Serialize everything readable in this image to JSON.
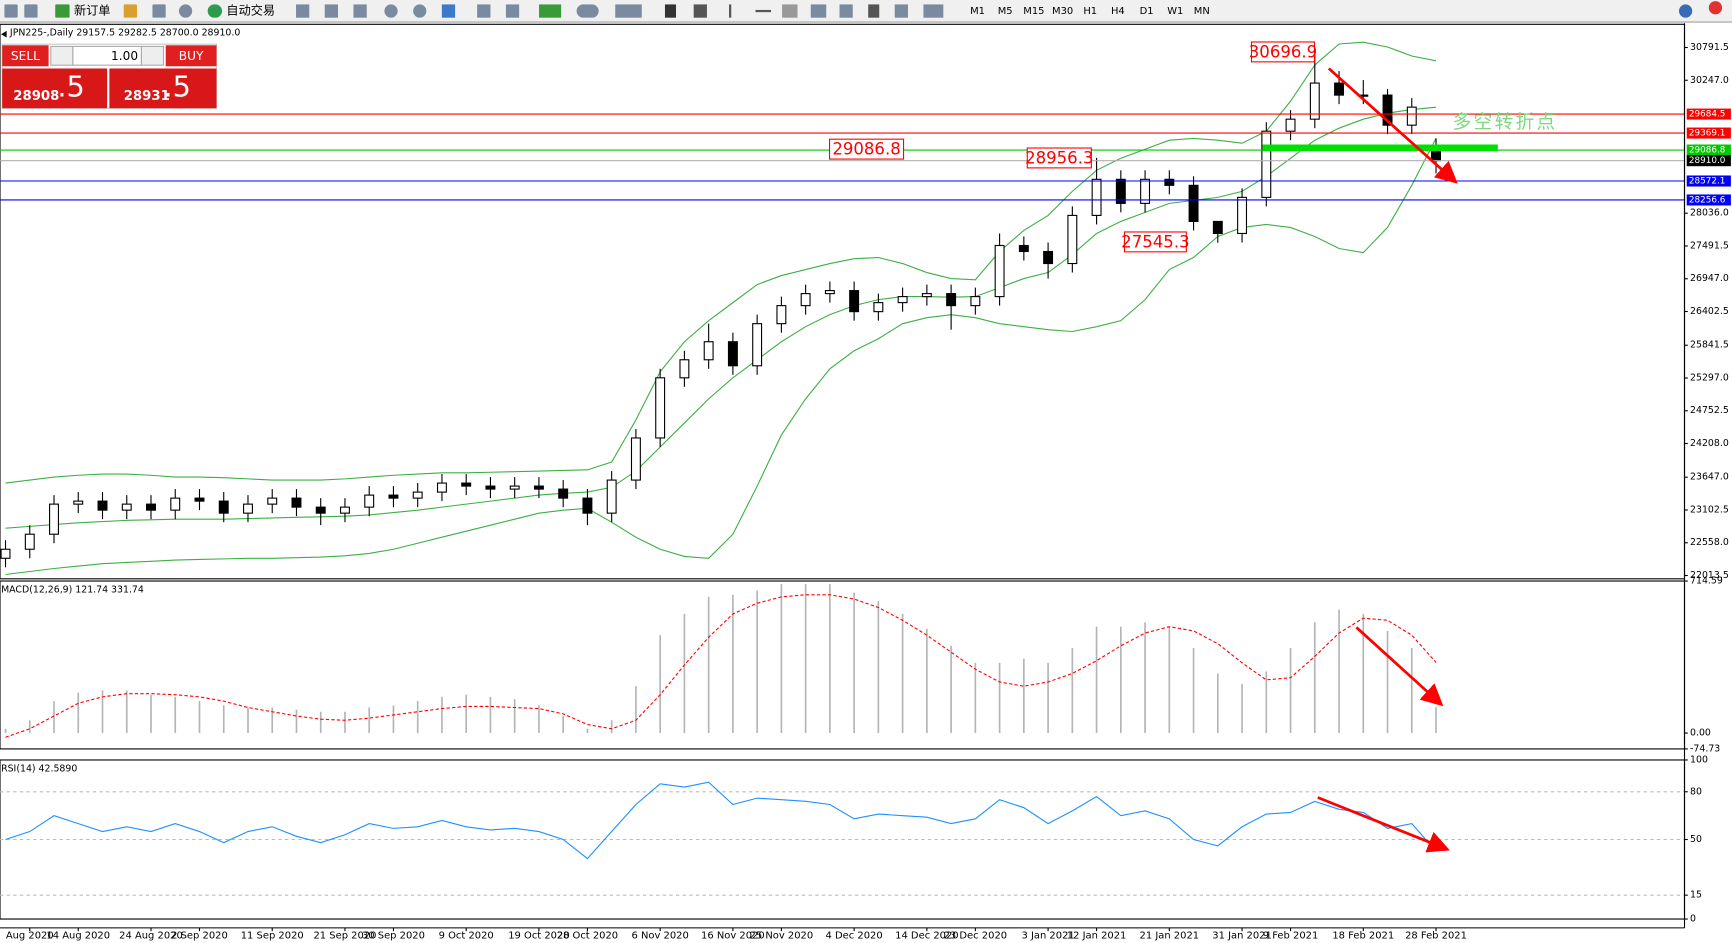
{
  "toolbar": {
    "labels": [
      "新订单",
      "自动交易"
    ],
    "timeframes": [
      "M1",
      "M5",
      "M15",
      "M30",
      "H1",
      "H4",
      "D1",
      "W1",
      "MN"
    ]
  },
  "trade_panel": {
    "sell": "SELL",
    "buy": "BUY",
    "volume": "1.00",
    "sell_price": "28908",
    "sell_pips": ".5",
    "buy_price": "28931",
    "buy_pips": ".5"
  },
  "chart_data": [
    {
      "type": "candlestick",
      "title": "JPN225-,Daily  29157.5 29282.5 28700.0 28910.0",
      "categories": [
        null,
        "Aug 2020",
        null,
        "14 Aug 2020",
        null,
        null,
        "24 Aug 2020",
        null,
        "2 Sep 2020",
        null,
        null,
        "11 Sep 2020",
        null,
        null,
        "21 Sep 2020",
        null,
        "30 Sep 2020",
        null,
        null,
        "9 Oct 2020",
        null,
        null,
        "19 Oct 2020",
        null,
        "28 Oct 2020",
        null,
        null,
        "6 Nov 2020",
        null,
        null,
        "16 Nov 2020",
        null,
        "25 Nov 2020",
        null,
        null,
        "4 Dec 2020",
        null,
        null,
        "14 Dec 2020",
        null,
        "23 Dec 2020",
        null,
        null,
        "3 Jan 2021",
        null,
        "12 Jan 2021",
        null,
        null,
        "21 Jan 2021",
        null,
        null,
        "31 Jan 2021",
        null,
        "9 Feb 2021",
        null,
        null,
        "18 Feb 2021",
        null,
        null,
        "28 Feb 2021"
      ],
      "open": [
        22300,
        22450,
        22700,
        23200,
        23250,
        23100,
        23200,
        23100,
        23300,
        23250,
        23050,
        23200,
        23300,
        23150,
        23050,
        23150,
        23350,
        23300,
        23400,
        23550,
        23500,
        23450,
        23500,
        23450,
        23300,
        23050,
        23600,
        24300,
        25300,
        25600,
        25900,
        25500,
        26200,
        26500,
        26700,
        26750,
        26400,
        26550,
        26650,
        26700,
        26500,
        26650,
        27500,
        27400,
        27200,
        28000,
        28600,
        28200,
        28600,
        28500,
        27900,
        27700,
        28300,
        29400,
        29600,
        30200,
        30000,
        30000,
        29500,
        29157.5
      ],
      "high": [
        22600,
        22850,
        23350,
        23400,
        23400,
        23350,
        23350,
        23450,
        23450,
        23400,
        23350,
        23450,
        23450,
        23300,
        23300,
        23500,
        23500,
        23550,
        23700,
        23700,
        23650,
        23650,
        23650,
        23600,
        23450,
        23750,
        24450,
        25450,
        25750,
        26200,
        26050,
        26350,
        26650,
        26850,
        26900,
        26900,
        26700,
        26800,
        26850,
        26850,
        26800,
        27700,
        27650,
        27550,
        28150,
        28956.3,
        28750,
        28750,
        28750,
        28650,
        27900,
        28450,
        29550,
        29750,
        30696.9,
        30400,
        30250,
        30100,
        29950,
        29282.5
      ],
      "low": [
        22150,
        22300,
        22550,
        23050,
        22950,
        22950,
        22950,
        22950,
        23100,
        22900,
        22900,
        23050,
        23000,
        22850,
        22900,
        23000,
        23150,
        23150,
        23250,
        23350,
        23300,
        23300,
        23300,
        23150,
        22850,
        22900,
        23450,
        24150,
        25150,
        25450,
        25350,
        25350,
        26050,
        26350,
        26550,
        26250,
        26250,
        26400,
        26500,
        26100,
        26350,
        26500,
        27250,
        26950,
        27050,
        27850,
        28050,
        28050,
        28350,
        27750,
        27545.3,
        27550,
        28150,
        29250,
        29450,
        29850,
        29850,
        29350,
        29350,
        28700
      ],
      "close": [
        22450,
        22700,
        23200,
        23250,
        23100,
        23200,
        23100,
        23300,
        23250,
        23050,
        23200,
        23300,
        23150,
        23050,
        23150,
        23350,
        23300,
        23400,
        23550,
        23500,
        23450,
        23500,
        23450,
        23300,
        23050,
        23600,
        24300,
        25300,
        25600,
        25900,
        25500,
        26200,
        26500,
        26700,
        26750,
        26400,
        26550,
        26650,
        26700,
        26500,
        26650,
        27500,
        27400,
        27200,
        28000,
        28600,
        28200,
        28600,
        28500,
        27900,
        27700,
        28300,
        29400,
        29600,
        30200,
        30000,
        30000,
        29500,
        29800,
        28910
      ],
      "color_up": "#ffffff",
      "color_down": "#000000",
      "series": [
        {
          "color": "#3cb043",
          "values": [
            23550,
            23600,
            23650,
            23680,
            23700,
            23700,
            23680,
            23650,
            23650,
            23640,
            23620,
            23600,
            23600,
            23600,
            23620,
            23650,
            23680,
            23700,
            23720,
            23720,
            23730,
            23740,
            23750,
            23760,
            23770,
            23900,
            24600,
            25400,
            25900,
            26250,
            26550,
            26850,
            27000,
            27100,
            27200,
            27280,
            27300,
            27200,
            27050,
            26950,
            26930,
            27400,
            27750,
            28000,
            28400,
            28750,
            28950,
            29100,
            29250,
            29280,
            29250,
            29200,
            29400,
            29900,
            30500,
            30850,
            30880,
            30800,
            30650,
            30570
          ]
        },
        {
          "color": "#3cb043",
          "values": [
            22800,
            22830,
            22860,
            22890,
            22910,
            22930,
            22940,
            22950,
            22950,
            22950,
            22960,
            22970,
            22980,
            22990,
            23000,
            23020,
            23060,
            23100,
            23150,
            23200,
            23250,
            23300,
            23350,
            23380,
            23400,
            23480,
            23750,
            24150,
            24550,
            24950,
            25300,
            25600,
            25900,
            26150,
            26350,
            26500,
            26600,
            26650,
            26650,
            26640,
            26650,
            26800,
            26950,
            27050,
            27350,
            27700,
            27900,
            28050,
            28200,
            28250,
            28300,
            28400,
            28650,
            28950,
            29250,
            29450,
            29600,
            29700,
            29760,
            29800
          ]
        },
        {
          "color": "#3cb043",
          "values": [
            22030,
            22080,
            22130,
            22170,
            22210,
            22230,
            22250,
            22270,
            22280,
            22290,
            22300,
            22300,
            22310,
            22320,
            22340,
            22380,
            22450,
            22550,
            22650,
            22750,
            22850,
            22950,
            23050,
            23100,
            23130,
            22900,
            22650,
            22450,
            22330,
            22300,
            22700,
            23500,
            24350,
            24950,
            25450,
            25750,
            25950,
            26200,
            26300,
            26350,
            26300,
            26200,
            26150,
            26100,
            26070,
            26150,
            26250,
            26600,
            27100,
            27300,
            27650,
            27800,
            27850,
            27800,
            27650,
            27450,
            27380,
            27800,
            28500,
            29280
          ]
        }
      ],
      "ylim": [
        21958.4,
        31177.2
      ],
      "yticks": [
        30791.5,
        {
          "value": 30247,
          "label": "30247.0"
        },
        {
          "value": 28036,
          "label": "28036.0"
        },
        27491.5,
        {
          "value": 26947,
          "label": "26947.0"
        },
        26402.5,
        25841.5,
        {
          "value": 25297,
          "label": "25297.0"
        },
        24752.5,
        {
          "value": 24208,
          "label": "24208.0"
        },
        {
          "value": 23647,
          "label": "23647.0"
        },
        23102.5,
        {
          "value": 22558,
          "label": "22558.0"
        },
        22013.5
      ],
      "levels": [
        {
          "value": 29684.5,
          "color": "#ff0000"
        },
        {
          "value": 29369.1,
          "color": "#ff0000"
        },
        {
          "value": 29086.8,
          "color": "#00c800"
        },
        {
          "value": 28910,
          "label": "28910.0",
          "color": "#000000"
        },
        {
          "value": 28572.1,
          "color": "#0000ff"
        },
        {
          "value": 28256.6,
          "color": "#0000ff"
        }
      ],
      "annotations": [
        "30696.9",
        "29086.8",
        "28956.3",
        "27545.3",
        "多空转折点"
      ]
    },
    {
      "type": "macd",
      "title": "MACD(12,26,9) 121.74 331.74",
      "series": [
        {
          "style": "histogram",
          "color": "#b4b4b4",
          "values": [
            20,
            60,
            150,
            190,
            200,
            200,
            180,
            170,
            150,
            130,
            120,
            120,
            110,
            100,
            100,
            120,
            130,
            150,
            170,
            180,
            170,
            160,
            130,
            80,
            20,
            60,
            220,
            460,
            560,
            640,
            650,
            670,
            700,
            700,
            700,
            660,
            620,
            560,
            490,
            410,
            330,
            330,
            350,
            330,
            400,
            500,
            500,
            520,
            500,
            400,
            280,
            230,
            290,
            400,
            520,
            580,
            560,
            480,
            400,
            121.74
          ]
        },
        {
          "style": "dashed",
          "color": "#ff0000",
          "values": [
            -20,
            20,
            80,
            140,
            170,
            185,
            185,
            180,
            170,
            150,
            120,
            100,
            80,
            65,
            60,
            70,
            85,
            100,
            115,
            125,
            125,
            120,
            115,
            90,
            40,
            20,
            60,
            180,
            320,
            450,
            560,
            610,
            640,
            650,
            650,
            630,
            590,
            530,
            460,
            380,
            300,
            240,
            220,
            240,
            280,
            340,
            410,
            470,
            500,
            480,
            420,
            330,
            250,
            260,
            360,
            470,
            540,
            530,
            460,
            331.74
          ]
        }
      ],
      "ylim": [
        -74.73,
        714.59
      ],
      "yticks": [
        714.59,
        {
          "value": 0,
          "label": "0.00"
        },
        -74.73
      ]
    },
    {
      "type": "line",
      "title": "RSI(14) 42.5890",
      "series": [
        {
          "color": "#1e90ff",
          "values": [
            50,
            55,
            65,
            60,
            55,
            58,
            55,
            60,
            55,
            48,
            55,
            58,
            52,
            48,
            53,
            60,
            57,
            58,
            62,
            58,
            56,
            57,
            55,
            50,
            38,
            55,
            72,
            85,
            83,
            86,
            72,
            76,
            75,
            74,
            72,
            63,
            66,
            65,
            64,
            60,
            63,
            75,
            70,
            60,
            68,
            77,
            65,
            68,
            63,
            50,
            46,
            58,
            66,
            67,
            74,
            69,
            67,
            57,
            60,
            42.589
          ]
        }
      ],
      "ylim": [
        0,
        100
      ],
      "yticks": [
        100,
        80,
        50,
        15,
        0
      ]
    }
  ]
}
